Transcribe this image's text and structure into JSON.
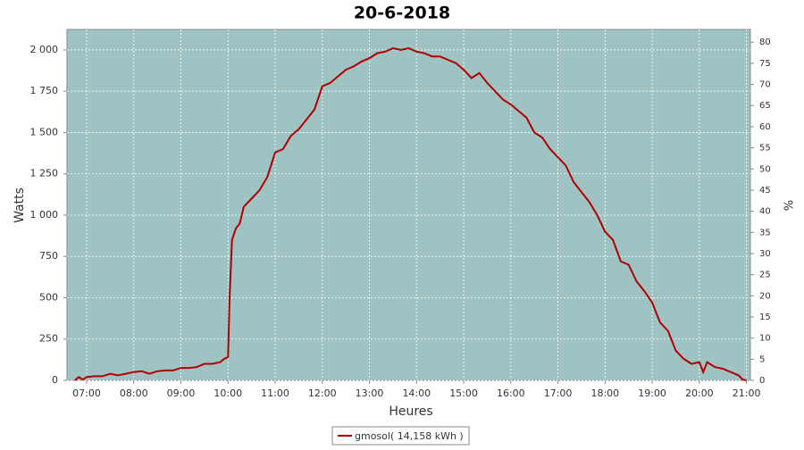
{
  "chart_data": {
    "type": "line",
    "title": "20-6-2018",
    "x_label": "Heures",
    "y_label": "Watts",
    "y2_label": "%",
    "x": [
      "06:45",
      "06:50",
      "06:55",
      "07:00",
      "07:10",
      "07:20",
      "07:30",
      "07:40",
      "07:50",
      "08:00",
      "08:10",
      "08:20",
      "08:30",
      "08:40",
      "08:50",
      "09:00",
      "09:10",
      "09:20",
      "09:30",
      "09:40",
      "09:50",
      "09:55",
      "10:00",
      "10:02",
      "10:05",
      "10:10",
      "10:15",
      "10:20",
      "10:30",
      "10:40",
      "10:50",
      "11:00",
      "11:10",
      "11:20",
      "11:30",
      "11:40",
      "11:50",
      "12:00",
      "12:10",
      "12:20",
      "12:30",
      "12:40",
      "12:50",
      "13:00",
      "13:10",
      "13:20",
      "13:30",
      "13:40",
      "13:50",
      "14:00",
      "14:10",
      "14:20",
      "14:30",
      "14:40",
      "14:50",
      "15:00",
      "15:10",
      "15:20",
      "15:30",
      "15:40",
      "15:50",
      "16:00",
      "16:10",
      "16:20",
      "16:30",
      "16:40",
      "16:50",
      "17:00",
      "17:10",
      "17:20",
      "17:30",
      "17:40",
      "17:50",
      "18:00",
      "18:10",
      "18:20",
      "18:30",
      "18:40",
      "18:50",
      "19:00",
      "19:10",
      "19:20",
      "19:30",
      "19:40",
      "19:50",
      "20:00",
      "20:05",
      "20:10",
      "20:20",
      "20:30",
      "20:40",
      "20:50",
      "20:55",
      "21:00"
    ],
    "series": [
      {
        "name": "gmosol( 14,158 kWh )",
        "color": "#b00000",
        "values": [
          0,
          20,
          5,
          20,
          25,
          25,
          40,
          30,
          40,
          50,
          55,
          40,
          55,
          60,
          60,
          75,
          75,
          80,
          100,
          100,
          110,
          130,
          140,
          500,
          850,
          920,
          950,
          1050,
          1100,
          1150,
          1230,
          1380,
          1400,
          1480,
          1520,
          1580,
          1640,
          1780,
          1800,
          1840,
          1880,
          1900,
          1930,
          1950,
          1980,
          1990,
          2010,
          2000,
          2010,
          1990,
          1980,
          1960,
          1960,
          1940,
          1920,
          1880,
          1830,
          1860,
          1800,
          1750,
          1700,
          1670,
          1630,
          1590,
          1500,
          1470,
          1400,
          1350,
          1300,
          1200,
          1140,
          1080,
          1000,
          900,
          850,
          720,
          700,
          600,
          540,
          470,
          350,
          300,
          180,
          130,
          100,
          110,
          50,
          110,
          80,
          70,
          50,
          30,
          5,
          0
        ]
      }
    ],
    "xlim": [
      "06:35",
      "21:05"
    ],
    "xticks": [
      "07:00",
      "08:00",
      "09:00",
      "10:00",
      "11:00",
      "12:00",
      "13:00",
      "14:00",
      "15:00",
      "16:00",
      "17:00",
      "18:00",
      "19:00",
      "20:00",
      "21:00"
    ],
    "ylim": [
      0,
      2124
    ],
    "yticks": [
      0,
      250,
      500,
      750,
      {
        "value": 1000,
        "label": "1 000"
      },
      {
        "value": 1250,
        "label": "1 250"
      },
      {
        "value": 1500,
        "label": "1 500"
      },
      {
        "value": 1750,
        "label": "1 750"
      },
      {
        "value": 2000,
        "label": "2 000"
      }
    ],
    "y2lim": [
      0,
      83
    ],
    "y2ticks": [
      0,
      5,
      10,
      15,
      20,
      25,
      30,
      35,
      40,
      45,
      50,
      55,
      60,
      65,
      70,
      75,
      80
    ],
    "grid": true,
    "background": "#9fc3c3",
    "legend": "bottom"
  }
}
